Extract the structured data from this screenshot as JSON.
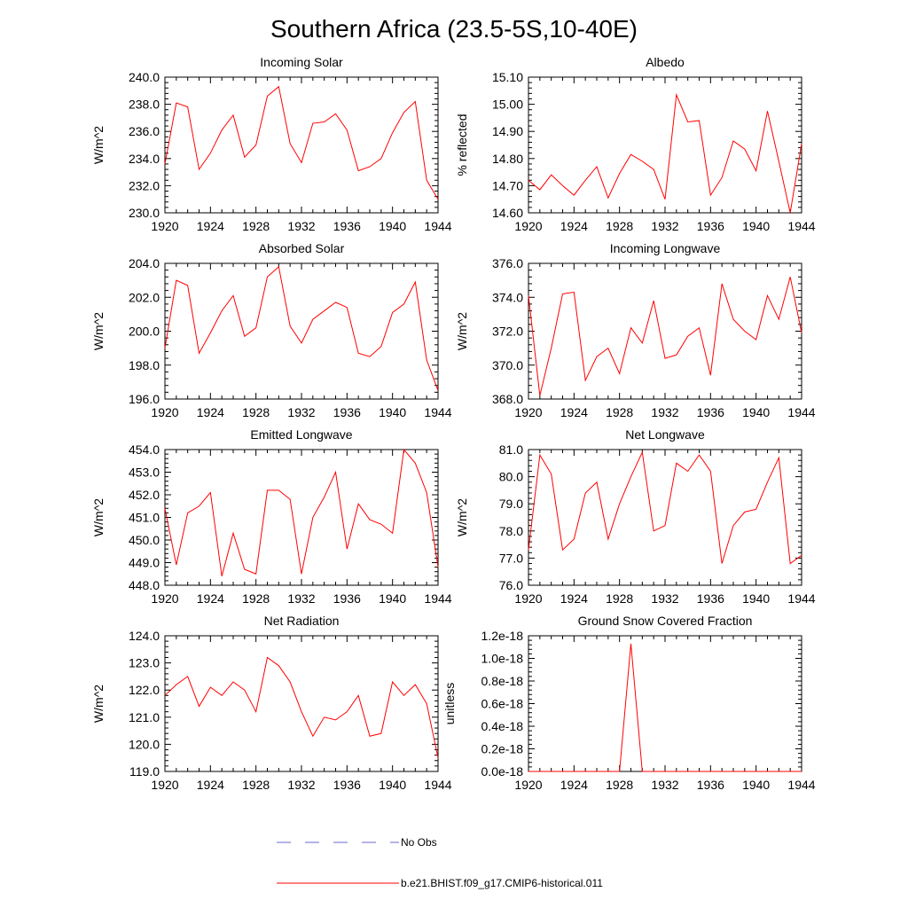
{
  "title": "Southern Africa (23.5-5S,10-40E)",
  "legend": {
    "obs_label": "No Obs",
    "obs_color": "#6a6acd",
    "model_label": "b.e21.BHIST.f09_g17.CMIP6-historical.011",
    "model_color": "#ff0000"
  },
  "chart_data": [
    {
      "type": "line",
      "title": "Incoming Solar",
      "ylabel": "W/m^2",
      "xlim": [
        1920,
        1944
      ],
      "ylim": [
        230,
        240
      ],
      "xticks": [
        "1920",
        "1924",
        "1928",
        "1932",
        "1936",
        "1940",
        "1944"
      ],
      "yticks": [
        "230.0",
        "232.0",
        "234.0",
        "236.0",
        "238.0",
        "240.0"
      ],
      "x": [
        1920,
        1921,
        1922,
        1923,
        1924,
        1925,
        1926,
        1927,
        1928,
        1929,
        1930,
        1931,
        1932,
        1933,
        1934,
        1935,
        1936,
        1937,
        1938,
        1939,
        1940,
        1941,
        1942,
        1943,
        1944
      ],
      "series": [
        {
          "name": "b.e21.BHIST.f09_g17.CMIP6-historical.011",
          "values": [
            233.6,
            238.1,
            237.8,
            233.2,
            234.4,
            236.1,
            237.2,
            234.1,
            235.0,
            238.6,
            239.3,
            235.1,
            233.7,
            236.6,
            236.7,
            237.3,
            236.1,
            233.1,
            233.4,
            234.0,
            235.9,
            237.4,
            238.2,
            232.4,
            231.0
          ]
        }
      ]
    },
    {
      "type": "line",
      "title": "Albedo",
      "ylabel": "% reflected",
      "xlim": [
        1920,
        1944
      ],
      "ylim": [
        14.6,
        15.1
      ],
      "xticks": [
        "1920",
        "1924",
        "1928",
        "1932",
        "1936",
        "1940",
        "1944"
      ],
      "yticks": [
        "14.60",
        "14.70",
        "14.80",
        "14.90",
        "15.00",
        "15.10"
      ],
      "x": [
        1920,
        1921,
        1922,
        1923,
        1924,
        1925,
        1926,
        1927,
        1928,
        1929,
        1930,
        1931,
        1932,
        1933,
        1934,
        1935,
        1936,
        1937,
        1938,
        1939,
        1940,
        1941,
        1942,
        1943,
        1944
      ],
      "series": [
        {
          "name": "b.e21.BHIST.f09_g17.CMIP6-historical.011",
          "values": [
            14.72,
            14.685,
            14.74,
            14.7,
            14.665,
            14.72,
            14.77,
            14.655,
            14.745,
            14.815,
            14.79,
            14.76,
            14.65,
            15.035,
            14.935,
            14.94,
            14.665,
            14.73,
            14.865,
            14.835,
            14.755,
            14.975,
            14.79,
            14.6,
            14.855
          ]
        }
      ]
    },
    {
      "type": "line",
      "title": "Absorbed Solar",
      "ylabel": "W/m^2",
      "xlim": [
        1920,
        1944
      ],
      "ylim": [
        196,
        204
      ],
      "xticks": [
        "1920",
        "1924",
        "1928",
        "1932",
        "1936",
        "1940",
        "1944"
      ],
      "yticks": [
        "196.0",
        "198.0",
        "200.0",
        "202.0",
        "204.0"
      ],
      "x": [
        1920,
        1921,
        1922,
        1923,
        1924,
        1925,
        1926,
        1927,
        1928,
        1929,
        1930,
        1931,
        1932,
        1933,
        1934,
        1935,
        1936,
        1937,
        1938,
        1939,
        1940,
        1941,
        1942,
        1943,
        1944
      ],
      "series": [
        {
          "name": "b.e21.BHIST.f09_g17.CMIP6-historical.011",
          "values": [
            199.0,
            203.0,
            202.7,
            198.7,
            199.9,
            201.2,
            202.1,
            199.7,
            200.2,
            203.2,
            203.8,
            200.3,
            199.3,
            200.7,
            201.2,
            201.7,
            201.4,
            198.7,
            198.5,
            199.1,
            201.1,
            201.6,
            202.9,
            198.3,
            196.5
          ]
        }
      ]
    },
    {
      "type": "line",
      "title": "Incoming Longwave",
      "ylabel": "W/m^2",
      "xlim": [
        1920,
        1944
      ],
      "ylim": [
        368,
        376
      ],
      "xticks": [
        "1920",
        "1924",
        "1928",
        "1932",
        "1936",
        "1940",
        "1944"
      ],
      "yticks": [
        "368.0",
        "370.0",
        "372.0",
        "374.0",
        "376.0"
      ],
      "x": [
        1920,
        1921,
        1922,
        1923,
        1924,
        1925,
        1926,
        1927,
        1928,
        1929,
        1930,
        1931,
        1932,
        1933,
        1934,
        1935,
        1936,
        1937,
        1938,
        1939,
        1940,
        1941,
        1942,
        1943,
        1944
      ],
      "series": [
        {
          "name": "b.e21.BHIST.f09_g17.CMIP6-historical.011",
          "values": [
            374.1,
            368.2,
            371.0,
            374.2,
            374.3,
            369.1,
            370.5,
            371.0,
            369.5,
            372.2,
            371.3,
            373.8,
            370.4,
            370.6,
            371.7,
            372.2,
            369.4,
            374.8,
            372.7,
            372.0,
            371.5,
            374.1,
            372.7,
            375.2,
            371.9
          ]
        }
      ]
    },
    {
      "type": "line",
      "title": "Emitted Longwave",
      "ylabel": "W/m^2",
      "xlim": [
        1920,
        1944
      ],
      "ylim": [
        448,
        454
      ],
      "xticks": [
        "1920",
        "1924",
        "1928",
        "1932",
        "1936",
        "1940",
        "1944"
      ],
      "yticks": [
        "448.0",
        "449.0",
        "450.0",
        "451.0",
        "452.0",
        "453.0",
        "454.0"
      ],
      "x": [
        1920,
        1921,
        1922,
        1923,
        1924,
        1925,
        1926,
        1927,
        1928,
        1929,
        1930,
        1931,
        1932,
        1933,
        1934,
        1935,
        1936,
        1937,
        1938,
        1939,
        1940,
        1941,
        1942,
        1943,
        1944
      ],
      "series": [
        {
          "name": "b.e21.BHIST.f09_g17.CMIP6-historical.011",
          "values": [
            451.4,
            448.9,
            451.2,
            451.5,
            452.1,
            448.4,
            450.3,
            448.7,
            448.5,
            452.2,
            452.2,
            451.8,
            448.5,
            451.0,
            451.9,
            453.0,
            449.6,
            451.6,
            450.9,
            450.7,
            450.3,
            454.0,
            453.4,
            452.1,
            448.8
          ]
        }
      ]
    },
    {
      "type": "line",
      "title": "Net Longwave",
      "ylabel": "W/m^2",
      "xlim": [
        1920,
        1944
      ],
      "ylim": [
        76,
        81
      ],
      "xticks": [
        "1920",
        "1924",
        "1928",
        "1932",
        "1936",
        "1940",
        "1944"
      ],
      "yticks": [
        "76.0",
        "77.0",
        "78.0",
        "79.0",
        "80.0",
        "81.0"
      ],
      "x": [
        1920,
        1921,
        1922,
        1923,
        1924,
        1925,
        1926,
        1927,
        1928,
        1929,
        1930,
        1931,
        1932,
        1933,
        1934,
        1935,
        1936,
        1937,
        1938,
        1939,
        1940,
        1941,
        1942,
        1943,
        1944
      ],
      "series": [
        {
          "name": "b.e21.BHIST.f09_g17.CMIP6-historical.011",
          "values": [
            77.3,
            80.8,
            80.1,
            77.3,
            77.7,
            79.4,
            79.8,
            77.7,
            79.0,
            80.0,
            80.9,
            78.0,
            78.2,
            80.5,
            80.2,
            80.8,
            80.2,
            76.8,
            78.2,
            78.7,
            78.8,
            79.8,
            80.7,
            76.8,
            77.1
          ]
        }
      ]
    },
    {
      "type": "line",
      "title": "Net Radiation",
      "ylabel": "W/m^2",
      "xlim": [
        1920,
        1944
      ],
      "ylim": [
        119,
        124
      ],
      "xticks": [
        "1920",
        "1924",
        "1928",
        "1932",
        "1936",
        "1940",
        "1944"
      ],
      "yticks": [
        "119.0",
        "120.0",
        "121.0",
        "122.0",
        "123.0",
        "124.0"
      ],
      "x": [
        1920,
        1921,
        1922,
        1923,
        1924,
        1925,
        1926,
        1927,
        1928,
        1929,
        1930,
        1931,
        1932,
        1933,
        1934,
        1935,
        1936,
        1937,
        1938,
        1939,
        1940,
        1941,
        1942,
        1943,
        1944
      ],
      "series": [
        {
          "name": "b.e21.BHIST.f09_g17.CMIP6-historical.011",
          "values": [
            121.8,
            122.2,
            122.5,
            121.4,
            122.1,
            121.8,
            122.3,
            122.0,
            121.2,
            123.2,
            122.9,
            122.3,
            121.2,
            120.3,
            121.0,
            120.9,
            121.2,
            121.8,
            120.3,
            120.4,
            122.3,
            121.8,
            122.2,
            121.5,
            119.5
          ]
        }
      ]
    },
    {
      "type": "line",
      "title": "Ground Snow Covered Fraction",
      "ylabel": "unitless",
      "xlim": [
        1920,
        1944
      ],
      "ylim": [
        0,
        1.2e-18
      ],
      "xticks": [
        "1920",
        "1924",
        "1928",
        "1932",
        "1936",
        "1940",
        "1944"
      ],
      "yticks": [
        "0.0e-18",
        "0.2e-18",
        "0.4e-18",
        "0.6e-18",
        "0.8e-18",
        "1.0e-18",
        "1.2e-18"
      ],
      "x": [
        1920,
        1921,
        1922,
        1923,
        1924,
        1925,
        1926,
        1927,
        1928,
        1929,
        1930,
        1931,
        1932,
        1933,
        1934,
        1935,
        1936,
        1937,
        1938,
        1939,
        1940,
        1941,
        1942,
        1943,
        1944
      ],
      "series": [
        {
          "name": "b.e21.BHIST.f09_g17.CMIP6-historical.011",
          "values": [
            0,
            0,
            0,
            0,
            0,
            0,
            0,
            0,
            0,
            1.13e-18,
            0,
            0,
            0,
            0,
            0,
            0,
            0,
            0,
            0,
            0,
            0,
            0,
            0,
            0,
            0
          ]
        }
      ]
    }
  ]
}
